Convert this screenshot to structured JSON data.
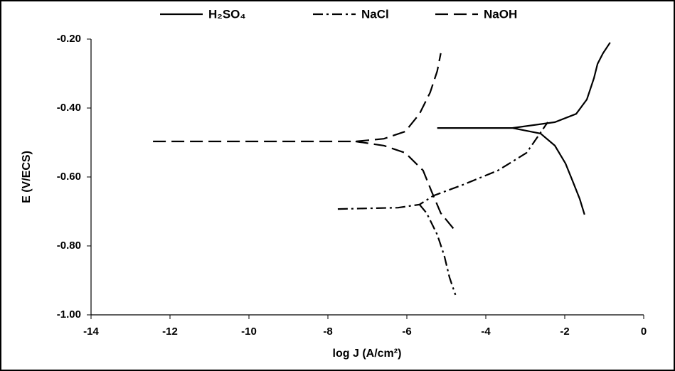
{
  "chart_data": {
    "type": "line",
    "xlabel": "log J (A/cm²)",
    "ylabel": "E (V/ECS)",
    "xlim": [
      -14,
      0
    ],
    "xticks": [
      -14,
      -12,
      -10,
      -8,
      -6,
      -4,
      -2,
      0
    ],
    "ylim": [
      -1.0,
      -0.2
    ],
    "yticks": [
      {
        "value": -1.0,
        "label": "-1.00"
      },
      {
        "value": -0.8,
        "label": "-0.80"
      },
      {
        "value": -0.6,
        "label": "-0.60"
      },
      {
        "value": -0.4,
        "label": "-0.40"
      },
      {
        "value": -0.2,
        "label": "-0.20"
      }
    ],
    "grid": false,
    "legend": "top",
    "series": [
      {
        "name": "H₂SO₄",
        "color": "#000000",
        "dash": "solid",
        "x": [
          -5.23,
          -3.33,
          -2.25,
          -1.71,
          -1.44,
          -1.26,
          -1.17,
          -1.03,
          -0.85,
          null,
          -3.33,
          -2.61,
          -2.25,
          -1.98,
          -1.8,
          -1.62,
          -1.5
        ],
        "values": [
          -0.458,
          -0.458,
          -0.441,
          -0.417,
          -0.375,
          -0.313,
          -0.272,
          -0.241,
          -0.21,
          null,
          -0.458,
          -0.474,
          -0.509,
          -0.561,
          -0.612,
          -0.664,
          -0.709
        ]
      },
      {
        "name": "NaCl",
        "color": "#000000",
        "dash": "dashdot",
        "x": [
          -7.75,
          -6.22,
          -5.68,
          -5.32,
          -4.59,
          -3.69,
          -2.97,
          -2.43,
          null,
          -5.68,
          -5.5,
          -5.23,
          -5.05,
          -4.92,
          -4.77
        ],
        "values": [
          -0.693,
          -0.689,
          -0.68,
          -0.654,
          -0.623,
          -0.581,
          -0.53,
          -0.441,
          null,
          -0.68,
          -0.705,
          -0.767,
          -0.829,
          -0.891,
          -0.942
        ]
      },
      {
        "name": "NaOH",
        "color": "#000000",
        "dash": "dashed",
        "x": [
          -12.43,
          -7.3,
          -6.58,
          -6.04,
          -5.68,
          -5.41,
          -5.23,
          -5.14,
          null,
          -7.3,
          -6.58,
          -6.04,
          -5.59,
          -5.37,
          -5.14,
          -4.81
        ],
        "values": [
          -0.497,
          -0.497,
          -0.489,
          -0.468,
          -0.417,
          -0.355,
          -0.293,
          -0.241,
          null,
          -0.497,
          -0.509,
          -0.53,
          -0.581,
          -0.643,
          -0.705,
          -0.751
        ]
      }
    ]
  }
}
